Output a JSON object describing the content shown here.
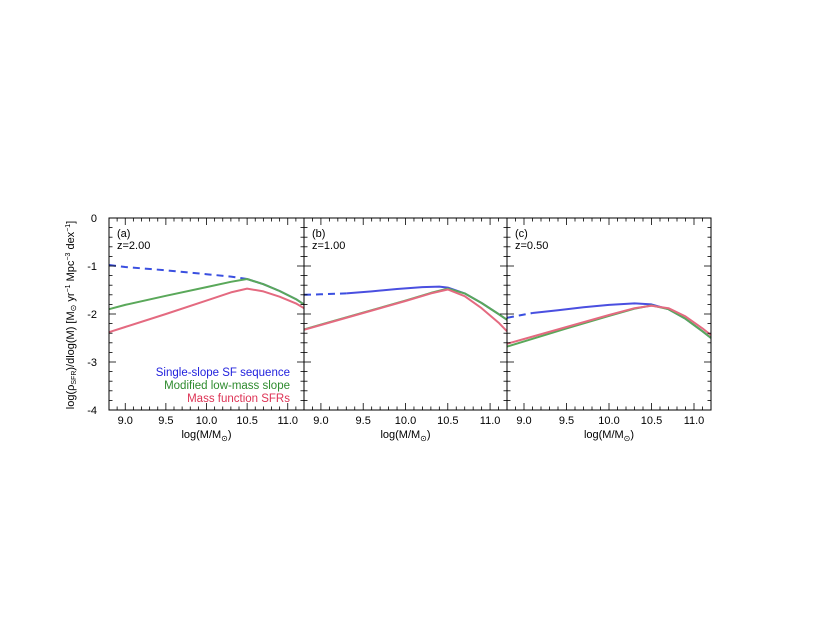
{
  "chart_data": {
    "type": "line",
    "ylabel_text": "log(ρ",
    "ylabel_sub": "SFR",
    "ylabel_rest": ")/dlog(M) [M",
    "ylabel_sun": "⊙",
    "ylabel_units": " yr",
    "ylabel_exp1": "−1",
    "ylabel_mpc": " Mpc",
    "ylabel_exp2": "−3",
    "ylabel_dex": " dex",
    "ylabel_exp3": "−1",
    "ylabel_close": "]",
    "xlabel_pre": "log(M/M",
    "xlabel_sun": "⊙",
    "xlabel_post": ")",
    "xlim": [
      8.8,
      11.2
    ],
    "ylim": [
      -4,
      0
    ],
    "xticks": [
      "9.0",
      "9.5",
      "10.0",
      "10.5",
      "11.0"
    ],
    "yticks": [
      "0",
      "-1",
      "-2",
      "-3",
      "-4"
    ],
    "legend": [
      {
        "label": "Single-slope SF sequence",
        "color": "#2222dd"
      },
      {
        "label": "Modified low-mass slope",
        "color": "#2e8b2e"
      },
      {
        "label": "Mass function SFRs",
        "color": "#dd3355"
      }
    ],
    "panels": [
      {
        "label": "(a)",
        "z": "z=2.00",
        "series": [
          {
            "style": "dashed",
            "color": "#3a4fe0",
            "x": [
              8.8,
              9.0,
              9.5,
              10.0,
              10.3,
              10.5
            ],
            "y": [
              -0.98,
              -1.02,
              -1.09,
              -1.17,
              -1.22,
              -1.27
            ]
          },
          {
            "style": "solid",
            "color": "#4a4fe0",
            "x": [
              10.5,
              10.7,
              10.9,
              11.1,
              11.2
            ],
            "y": [
              -1.27,
              -1.38,
              -1.52,
              -1.69,
              -1.8
            ]
          },
          {
            "style": "solid",
            "color": "#5aa85a",
            "x": [
              8.8,
              9.0,
              9.5,
              10.0,
              10.3,
              10.5,
              10.7,
              10.9,
              11.1,
              11.2
            ],
            "y": [
              -1.9,
              -1.81,
              -1.62,
              -1.44,
              -1.33,
              -1.27,
              -1.38,
              -1.52,
              -1.69,
              -1.8
            ]
          },
          {
            "style": "solid",
            "color": "#e46a80",
            "x": [
              8.8,
              9.0,
              9.5,
              10.0,
              10.3,
              10.5,
              10.7,
              10.9,
              11.1,
              11.2
            ],
            "y": [
              -2.38,
              -2.27,
              -2.0,
              -1.72,
              -1.55,
              -1.47,
              -1.53,
              -1.64,
              -1.78,
              -1.88
            ]
          }
        ]
      },
      {
        "label": "(b)",
        "z": "z=1.00",
        "series": [
          {
            "style": "dashed",
            "color": "#3a4fe0",
            "x": [
              8.8,
              9.0,
              9.3
            ],
            "y": [
              -1.6,
              -1.59,
              -1.57
            ]
          },
          {
            "style": "solid",
            "color": "#4a4fe0",
            "x": [
              9.3,
              9.6,
              9.9,
              10.2,
              10.4,
              10.5,
              10.7,
              10.9,
              11.1,
              11.2
            ],
            "y": [
              -1.57,
              -1.53,
              -1.48,
              -1.44,
              -1.43,
              -1.45,
              -1.57,
              -1.77,
              -2.0,
              -2.12
            ]
          },
          {
            "style": "solid",
            "color": "#5aa85a",
            "x": [
              8.8,
              9.0,
              9.5,
              10.0,
              10.3,
              10.5,
              10.7,
              10.9,
              11.1,
              11.2
            ],
            "y": [
              -2.32,
              -2.22,
              -1.97,
              -1.72,
              -1.56,
              -1.47,
              -1.57,
              -1.77,
              -2.0,
              -2.12
            ]
          },
          {
            "style": "solid",
            "color": "#e46a80",
            "x": [
              8.8,
              9.0,
              9.5,
              10.0,
              10.3,
              10.5,
              10.7,
              10.9,
              11.1,
              11.2
            ],
            "y": [
              -2.33,
              -2.23,
              -1.98,
              -1.73,
              -1.57,
              -1.49,
              -1.63,
              -1.88,
              -2.18,
              -2.36
            ]
          }
        ]
      },
      {
        "label": "(c)",
        "z": "z=0.50",
        "series": [
          {
            "style": "dashed",
            "color": "#3a4fe0",
            "x": [
              8.8,
              8.95,
              9.1
            ],
            "y": [
              -2.08,
              -2.03,
              -1.98
            ]
          },
          {
            "style": "solid",
            "color": "#4a4fe0",
            "x": [
              9.1,
              9.4,
              9.7,
              10.0,
              10.3,
              10.5,
              10.7,
              10.9,
              11.1,
              11.2
            ],
            "y": [
              -1.98,
              -1.92,
              -1.86,
              -1.81,
              -1.78,
              -1.8,
              -1.9,
              -2.1,
              -2.36,
              -2.5
            ]
          },
          {
            "style": "solid",
            "color": "#5aa85a",
            "x": [
              8.8,
              9.0,
              9.5,
              10.0,
              10.3,
              10.5,
              10.7,
              10.9,
              11.1,
              11.2
            ],
            "y": [
              -2.68,
              -2.57,
              -2.3,
              -2.04,
              -1.89,
              -1.82,
              -1.9,
              -2.1,
              -2.36,
              -2.5
            ]
          },
          {
            "style": "solid",
            "color": "#e46a80",
            "x": [
              8.8,
              9.0,
              9.5,
              10.0,
              10.3,
              10.5,
              10.7,
              10.9,
              11.1,
              11.2
            ],
            "y": [
              -2.62,
              -2.52,
              -2.27,
              -2.02,
              -1.88,
              -1.83,
              -1.88,
              -2.05,
              -2.3,
              -2.44
            ]
          }
        ]
      }
    ]
  }
}
